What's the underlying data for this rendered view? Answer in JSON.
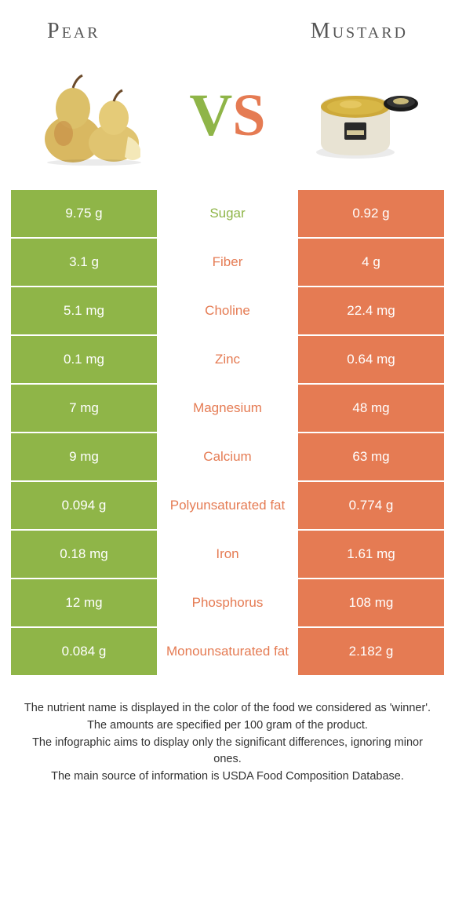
{
  "left_food": "Pear",
  "right_food": "Mustard",
  "colors": {
    "left": "#8fb548",
    "right": "#e57b53"
  },
  "rows": [
    {
      "left": "9.75 g",
      "label": "Sugar",
      "right": "0.92 g",
      "winner": "left"
    },
    {
      "left": "3.1 g",
      "label": "Fiber",
      "right": "4 g",
      "winner": "right"
    },
    {
      "left": "5.1 mg",
      "label": "Choline",
      "right": "22.4 mg",
      "winner": "right"
    },
    {
      "left": "0.1 mg",
      "label": "Zinc",
      "right": "0.64 mg",
      "winner": "right"
    },
    {
      "left": "7 mg",
      "label": "Magnesium",
      "right": "48 mg",
      "winner": "right"
    },
    {
      "left": "9 mg",
      "label": "Calcium",
      "right": "63 mg",
      "winner": "right"
    },
    {
      "left": "0.094 g",
      "label": "Polyunsaturated fat",
      "right": "0.774 g",
      "winner": "right"
    },
    {
      "left": "0.18 mg",
      "label": "Iron",
      "right": "1.61 mg",
      "winner": "right"
    },
    {
      "left": "12 mg",
      "label": "Phosphorus",
      "right": "108 mg",
      "winner": "right"
    },
    {
      "left": "0.084 g",
      "label": "Monounsaturated fat",
      "right": "2.182 g",
      "winner": "right"
    }
  ],
  "footer": [
    "The nutrient name is displayed in the color of the food we considered as 'winner'.",
    "The amounts are specified per 100 gram of the product.",
    "The infographic aims to display only the significant differences, ignoring minor ones.",
    "The main source of information is USDA Food Composition Database."
  ]
}
